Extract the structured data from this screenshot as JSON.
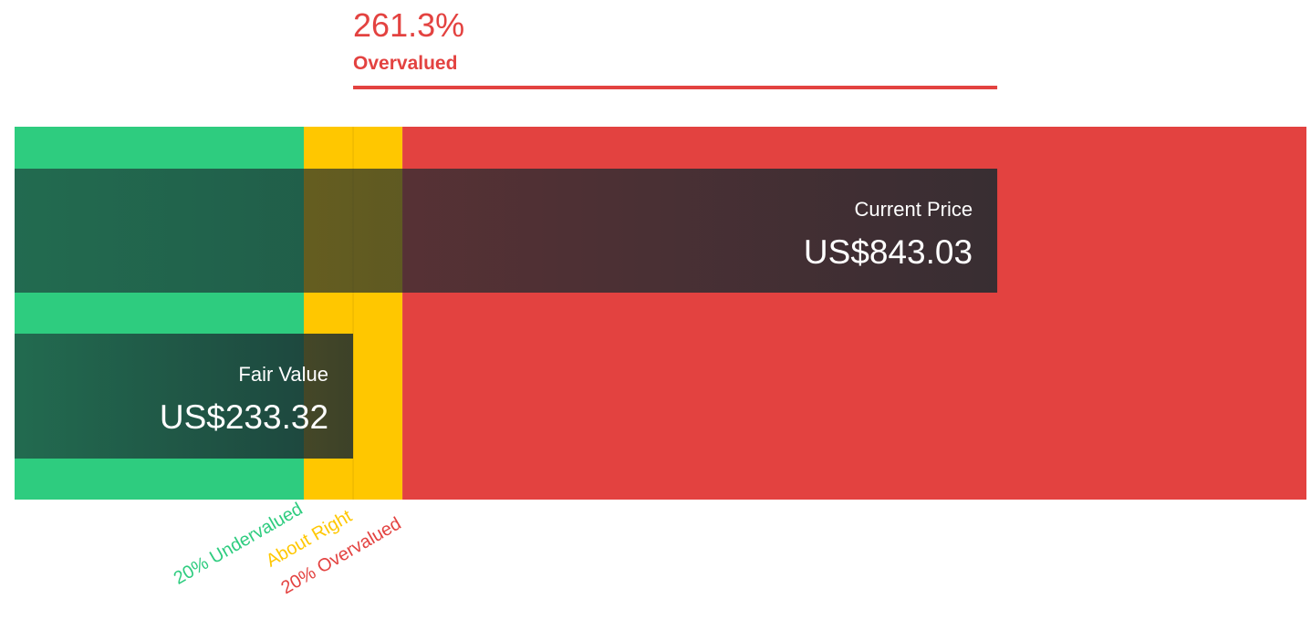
{
  "chart_data": {
    "type": "valuation",
    "annotation": {
      "value": 261.3,
      "label": "261.3%",
      "text": "Overvalued",
      "color": "#e34240"
    },
    "categories": [
      "Current Price",
      "Fair Value"
    ],
    "values": [
      843.03,
      233.32
    ],
    "value_labels": [
      "US$843.03",
      "US$233.32"
    ],
    "zones": [
      "20% Undervalued",
      "About Right",
      "20% Overvalued"
    ],
    "zone_colors": [
      "#2ecc7f",
      "#ffc700",
      "#e34240"
    ],
    "xlim": [
      -87.1,
      1135.7
    ]
  }
}
